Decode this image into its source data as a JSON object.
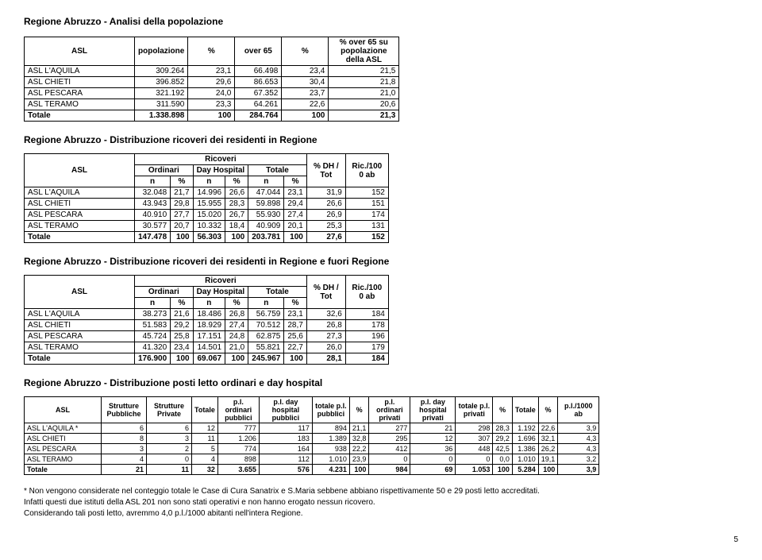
{
  "page_title": "Regione Abruzzo - Analisi della popolazione",
  "table1": {
    "headers": {
      "asl": "ASL",
      "pop": "popolazione",
      "pct": "%",
      "over65": "over 65",
      "pct2": "%",
      "over65_su": "% over 65 su popolazione della ASL"
    },
    "rows": [
      {
        "asl": "ASL L'AQUILA",
        "pop": "309.264",
        "pct": "23,1",
        "over65": "66.498",
        "pct2": "23,4",
        "o65": "21,5"
      },
      {
        "asl": "ASL CHIETI",
        "pop": "396.852",
        "pct": "29,6",
        "over65": "86.653",
        "pct2": "30,4",
        "o65": "21,8"
      },
      {
        "asl": "ASL PESCARA",
        "pop": "321.192",
        "pct": "24,0",
        "over65": "67.352",
        "pct2": "23,7",
        "o65": "21,0"
      },
      {
        "asl": "ASL TERAMO",
        "pop": "311.590",
        "pct": "23,3",
        "over65": "64.261",
        "pct2": "22,6",
        "o65": "20,6"
      },
      {
        "asl": "Totale",
        "pop": "1.338.898",
        "pct": "100",
        "over65": "284.764",
        "pct2": "100",
        "o65": "21,3"
      }
    ]
  },
  "section2_title": "Regione Abruzzo - Distribuzione ricoveri dei residenti in Regione",
  "table2": {
    "group": "Ricoveri",
    "h": {
      "asl": "ASL",
      "ord": "Ordinari",
      "dh": "Day Hospital",
      "tot": "Totale",
      "dhp": "% DH / Tot",
      "ric": "Ric./100 0 ab",
      "n": "n",
      "p": "%"
    },
    "rows": [
      {
        "asl": "ASL L'AQUILA",
        "on": "32.048",
        "op": "21,7",
        "dn": "14.996",
        "dp": "26,6",
        "tn": "47.044",
        "tp": "23,1",
        "dh": "31,9",
        "ric": "152"
      },
      {
        "asl": "ASL CHIETI",
        "on": "43.943",
        "op": "29,8",
        "dn": "15.955",
        "dp": "28,3",
        "tn": "59.898",
        "tp": "29,4",
        "dh": "26,6",
        "ric": "151"
      },
      {
        "asl": "ASL PESCARA",
        "on": "40.910",
        "op": "27,7",
        "dn": "15.020",
        "dp": "26,7",
        "tn": "55.930",
        "tp": "27,4",
        "dh": "26,9",
        "ric": "174"
      },
      {
        "asl": "ASL TERAMO",
        "on": "30.577",
        "op": "20,7",
        "dn": "10.332",
        "dp": "18,4",
        "tn": "40.909",
        "tp": "20,1",
        "dh": "25,3",
        "ric": "131"
      },
      {
        "asl": "Totale",
        "on": "147.478",
        "op": "100",
        "dn": "56.303",
        "dp": "100",
        "tn": "203.781",
        "tp": "100",
        "dh": "27,6",
        "ric": "152"
      }
    ]
  },
  "section3_title": "Regione Abruzzo - Distribuzione ricoveri dei residenti in Regione e fuori Regione",
  "table3": {
    "rows": [
      {
        "asl": "ASL L'AQUILA",
        "on": "38.273",
        "op": "21,6",
        "dn": "18.486",
        "dp": "26,8",
        "tn": "56.759",
        "tp": "23,1",
        "dh": "32,6",
        "ric": "184"
      },
      {
        "asl": "ASL CHIETI",
        "on": "51.583",
        "op": "29,2",
        "dn": "18.929",
        "dp": "27,4",
        "tn": "70.512",
        "tp": "28,7",
        "dh": "26,8",
        "ric": "178"
      },
      {
        "asl": "ASL PESCARA",
        "on": "45.724",
        "op": "25,8",
        "dn": "17.151",
        "dp": "24,8",
        "tn": "62.875",
        "tp": "25,6",
        "dh": "27,3",
        "ric": "196"
      },
      {
        "asl": "ASL TERAMO",
        "on": "41.320",
        "op": "23,4",
        "dn": "14.501",
        "dp": "21,0",
        "tn": "55.821",
        "tp": "22,7",
        "dh": "26,0",
        "ric": "179"
      },
      {
        "asl": "Totale",
        "on": "176.900",
        "op": "100",
        "dn": "69.067",
        "dp": "100",
        "tn": "245.967",
        "tp": "100",
        "dh": "28,1",
        "ric": "184"
      }
    ]
  },
  "section4_title": "Regione Abruzzo - Distribuzione posti letto ordinari e day hospital",
  "table4": {
    "h": {
      "asl": "ASL",
      "spub": "Strutture Pubbliche",
      "spriv": "Strutture Private",
      "tot": "Totale",
      "plop": "p.l. ordinari pubblici",
      "pldh": "p.l. day hospital pubblici",
      "tplp": "totale p.l. pubblici",
      "pct": "%",
      "plopr": "p.l. ordinari privati",
      "pldhp": "p.l. day hospital privati",
      "tplpr": "totale p.l. privati",
      "pct2": "%",
      "tot2": "Totale",
      "pct3": "%",
      "pl1000": "p.l./1000 ab"
    },
    "rows": [
      {
        "asl": "ASL L'AQUILA *",
        "a": "6",
        "b": "6",
        "c": "12",
        "d": "777",
        "e": "117",
        "f": "894",
        "g": "21,1",
        "h": "277",
        "i": "21",
        "j": "298",
        "k": "28,3",
        "l": "1.192",
        "m": "22,6",
        "n": "3,9"
      },
      {
        "asl": "ASL CHIETI",
        "a": "8",
        "b": "3",
        "c": "11",
        "d": "1.206",
        "e": "183",
        "f": "1.389",
        "g": "32,8",
        "h": "295",
        "i": "12",
        "j": "307",
        "k": "29,2",
        "l": "1.696",
        "m": "32,1",
        "n": "4,3"
      },
      {
        "asl": "ASL PESCARA",
        "a": "3",
        "b": "2",
        "c": "5",
        "d": "774",
        "e": "164",
        "f": "938",
        "g": "22,2",
        "h": "412",
        "i": "36",
        "j": "448",
        "k": "42,5",
        "l": "1.386",
        "m": "26,2",
        "n": "4,3"
      },
      {
        "asl": "ASL TERAMO",
        "a": "4",
        "b": "0",
        "c": "4",
        "d": "898",
        "e": "112",
        "f": "1.010",
        "g": "23,9",
        "h": "0",
        "i": "0",
        "j": "0",
        "k": "0,0",
        "l": "1.010",
        "m": "19,1",
        "n": "3,2"
      },
      {
        "asl": "Totale",
        "a": "21",
        "b": "11",
        "c": "32",
        "d": "3.655",
        "e": "576",
        "f": "4.231",
        "g": "100",
        "h": "984",
        "i": "69",
        "j": "1.053",
        "k": "100",
        "l": "5.284",
        "m": "100",
        "n": "3,9"
      }
    ]
  },
  "notes": {
    "l1": "* Non vengono considerate nel conteggio totale le Case di Cura Sanatrix e S.Maria sebbene abbiano rispettivamente 50 e 29 posti letto accreditati.",
    "l2": "Infatti questi due istituti della ASL 201 non sono stati operativi e non hanno erogato nessun ricovero.",
    "l3": "Considerando tali posti letto, avremmo 4,0 p.l./1000 abitanti nell'intera Regione."
  },
  "page_number": "5"
}
